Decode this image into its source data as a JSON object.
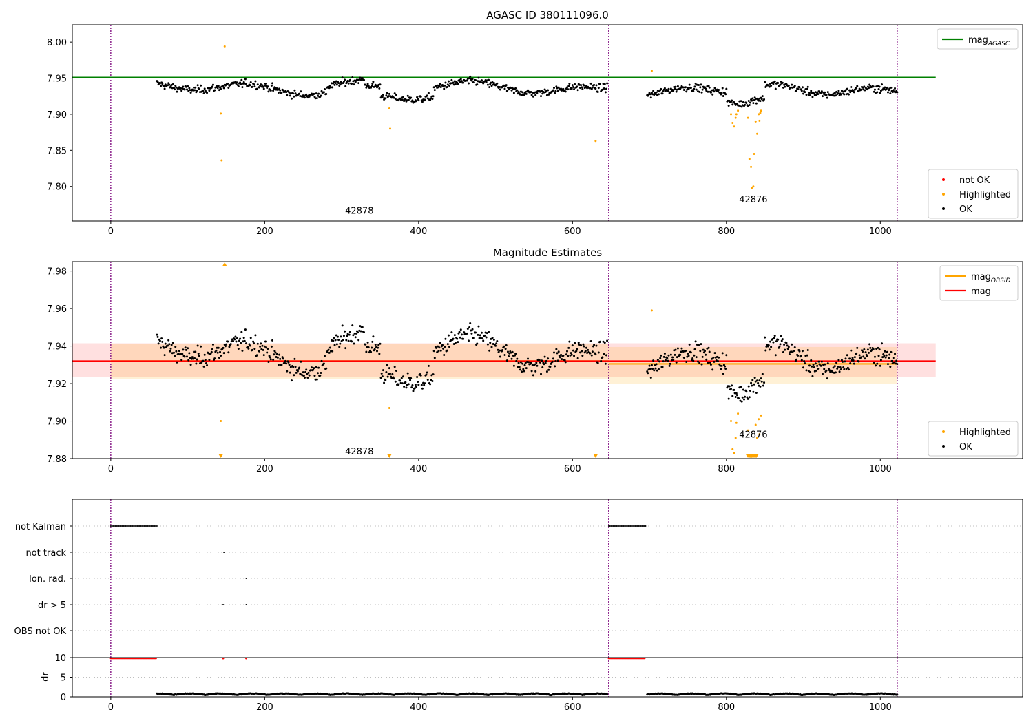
{
  "chart_data": [
    {
      "type": "scatter",
      "title": "AGASC ID 380111096.0",
      "xlim": [
        -50,
        1185
      ],
      "ylim": [
        7.752,
        8.024
      ],
      "xticks": [
        0,
        200,
        400,
        600,
        800,
        1000
      ],
      "yticks": [
        7.8,
        7.85,
        7.9,
        7.95,
        8.0
      ],
      "ytick_labels": [
        "7.80",
        "7.85",
        "7.90",
        "7.95",
        "8.00"
      ],
      "grid": false,
      "obsid_boundaries": [
        0,
        647,
        1022
      ],
      "obsid_annotations": [
        {
          "text": "42878",
          "x": 323,
          "y": 7.762
        },
        {
          "text": "42876",
          "x": 835,
          "y": 7.778
        }
      ],
      "hline": {
        "value": 7.951,
        "x_range": [
          -50,
          1072
        ],
        "color": "#008000"
      },
      "highlighted_points": {
        "x": [
          143,
          144,
          148,
          362,
          363,
          630,
          703,
          806,
          808,
          810,
          812,
          813,
          815,
          828,
          830,
          832,
          833,
          835,
          836,
          838,
          840,
          842,
          843,
          844,
          845
        ],
        "y": [
          7.901,
          7.836,
          7.994,
          7.908,
          7.88,
          7.863,
          7.96,
          7.9,
          7.888,
          7.883,
          7.895,
          7.9,
          7.905,
          7.895,
          7.838,
          7.827,
          7.798,
          7.8,
          7.845,
          7.89,
          7.873,
          7.9,
          7.891,
          7.902,
          7.905
        ]
      },
      "legends": [
        {
          "placement": "upper-right",
          "entries": [
            {
              "label": "mag",
              "sub": "AGASC",
              "color": "#008000",
              "kind": "line"
            }
          ]
        },
        {
          "placement": "lower-right",
          "entries": [
            {
              "label": "not OK",
              "color": "#ff0000",
              "kind": "dot"
            },
            {
              "label": "Highlighted",
              "color": "#ffa500",
              "kind": "dot"
            },
            {
              "label": "OK",
              "color": "#000000",
              "kind": "dot"
            }
          ]
        }
      ]
    },
    {
      "type": "scatter",
      "title": "Magnitude Estimates",
      "xlim": [
        -50,
        1185
      ],
      "ylim": [
        7.88,
        7.985
      ],
      "xticks": [
        0,
        200,
        400,
        600,
        800,
        1000
      ],
      "yticks": [
        7.88,
        7.9,
        7.92,
        7.94,
        7.96,
        7.98
      ],
      "ytick_labels": [
        "7.88",
        "7.90",
        "7.92",
        "7.94",
        "7.96",
        "7.98"
      ],
      "grid": false,
      "obsid_boundaries": [
        0,
        647,
        1022
      ],
      "obsid_annotations": [
        {
          "text": "42878",
          "x": 323,
          "y": 7.883
        },
        {
          "text": "42876",
          "x": 835,
          "y": 7.892
        }
      ],
      "mag_line": {
        "value": 7.932,
        "band": [
          7.9235,
          7.9415
        ],
        "x_range": [
          -50,
          1072
        ],
        "color": "#ff0000"
      },
      "obsid_segments": [
        {
          "x_range": [
            0,
            647
          ],
          "value": 7.932,
          "band": [
            7.9225,
            7.941
          ]
        },
        {
          "x_range": [
            647,
            1022
          ],
          "value": 7.9305,
          "band": [
            7.92,
            7.9395
          ]
        }
      ],
      "highlighted_points": {
        "x": [
          143,
          362,
          703,
          806,
          808,
          810,
          812,
          813,
          815,
          828,
          832,
          836,
          838,
          840,
          842,
          843,
          845
        ],
        "y": [
          7.9,
          7.907,
          7.959,
          7.9,
          7.885,
          7.883,
          7.891,
          7.899,
          7.904,
          7.895,
          7.881,
          7.882,
          7.898,
          7.891,
          7.901,
          7.893,
          7.903
        ]
      },
      "offscale_markers": {
        "up_x": [
          148
        ],
        "down_x": [
          143,
          362,
          630,
          828,
          830,
          831,
          832,
          833,
          834,
          835,
          836,
          837,
          838,
          839
        ]
      },
      "legends": [
        {
          "placement": "upper-right",
          "entries": [
            {
              "label": "mag",
              "sub": "OBSID",
              "color": "#ffa500",
              "kind": "line"
            },
            {
              "label": "mag",
              "color": "#ff0000",
              "kind": "line"
            }
          ]
        },
        {
          "placement": "lower-right",
          "entries": [
            {
              "label": "Highlighted",
              "color": "#ffa500",
              "kind": "dot"
            },
            {
              "label": "OK",
              "color": "#000000",
              "kind": "dot"
            }
          ]
        }
      ]
    },
    {
      "type": "scatter",
      "title": "",
      "xlim": [
        -50,
        1185
      ],
      "xticks": [
        0,
        200,
        400,
        600,
        800,
        1000
      ],
      "obsid_boundaries": [
        0,
        647,
        1022
      ],
      "flag_rows": [
        "not Kalman",
        "not track",
        "Ion. rad.",
        "dr > 5",
        "OBS not OK"
      ],
      "flags": {
        "not Kalman": {
          "ranges": [
            [
              0,
              60
            ],
            [
              647,
              695
            ]
          ]
        },
        "not track": {
          "points": [
            147
          ]
        },
        "Ion. rad.": {
          "points": [
            176
          ]
        },
        "dr > 5": {
          "points": [
            146,
            176
          ]
        },
        "OBS not OK": {
          "points": []
        }
      },
      "dr_panel": {
        "ylabel": "dr",
        "ylim": [
          0,
          10
        ],
        "yticks": [
          0,
          5,
          10
        ],
        "ytick_labels": [
          "0",
          "5",
          "10"
        ],
        "clipped_points": {
          "ranges": [
            [
              0,
              60
            ],
            [
              647,
              695
            ]
          ],
          "points": [
            146,
            176
          ],
          "value": 10
        }
      }
    }
  ]
}
